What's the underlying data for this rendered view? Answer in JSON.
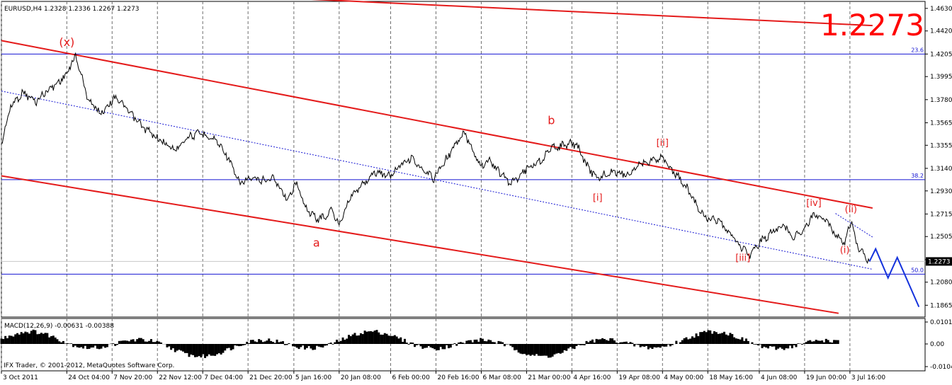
{
  "header": {
    "symbol_line": "EURUSD,H4  1.2328 1.2336 1.2267 1.2273",
    "big_price": "1.2273"
  },
  "indicator": {
    "label": "MACD(12,26,9) -0.00631 -0.00388",
    "y_ticks": [
      "0.0101",
      "0.00",
      "-0.0104"
    ]
  },
  "footer": {
    "copyright": "IFX Trader, © 2001-2012, MetaQuotes Software Corp."
  },
  "colors": {
    "price_line": "#000000",
    "channel": "#e41b1b",
    "fib_line": "#1414d2",
    "wave_label": "#e41b1b",
    "projection": "#1432dc",
    "grid": "#6e6e6e",
    "current_price_box": "#000000"
  },
  "chart_data": {
    "type": "line",
    "title": "EURUSD,H4",
    "y_axis": {
      "range": [
        1.1755,
        1.4695
      ],
      "ticks": [
        "1.4630",
        "1.4420",
        "1.4205",
        "1.3995",
        "1.3780",
        "1.3565",
        "1.3355",
        "1.3140",
        "1.2930",
        "1.2715",
        "1.2505",
        "1.2290",
        "1.2080",
        "1.1865"
      ],
      "current_price": "1.2273"
    },
    "x_axis": {
      "ticks": [
        "3 Oct 2011",
        "24 Oct 04:00",
        "7 Nov 20:00",
        "22 Nov 12:00",
        "7 Dec 04:00",
        "21 Dec 20:00",
        "5 Jan 16:00",
        "20 Jan 08:00",
        "6 Feb 00:00",
        "20 Feb 16:00",
        "6 Mar 08:00",
        "21 Mar 00:00",
        "4 Apr 16:00",
        "19 Apr 08:00",
        "4 May 00:00",
        "18 May 16:00",
        "4 Jun 08:00",
        "19 Jun 00:00",
        "3 Jul 16:00"
      ]
    },
    "price_series": [
      {
        "x": "3 Oct 2011",
        "y": 1.337
      },
      {
        "x": "6 Oct 2011",
        "y": 1.372
      },
      {
        "x": "10 Oct 2011",
        "y": 1.385
      },
      {
        "x": "14 Oct 2011",
        "y": 1.376
      },
      {
        "x": "18 Oct 2011",
        "y": 1.387
      },
      {
        "x": "21 Oct 2011",
        "y": 1.393
      },
      {
        "x": "24 Oct 04:00",
        "y": 1.402
      },
      {
        "x": "27 Oct 2011",
        "y": 1.419
      },
      {
        "x": "31 Oct 2011",
        "y": 1.379
      },
      {
        "x": "4 Nov 2011",
        "y": 1.365
      },
      {
        "x": "9 Nov 2011",
        "y": 1.381
      },
      {
        "x": "14 Nov 2011",
        "y": 1.364
      },
      {
        "x": "18 Nov 2011",
        "y": 1.352
      },
      {
        "x": "23 Nov 2011",
        "y": 1.341
      },
      {
        "x": "28 Nov 2011",
        "y": 1.331
      },
      {
        "x": "2 Dec 2011",
        "y": 1.343
      },
      {
        "x": "7 Dec 2011",
        "y": 1.347
      },
      {
        "x": "12 Dec 2011",
        "y": 1.339
      },
      {
        "x": "15 Dec 2011",
        "y": 1.326
      },
      {
        "x": "19 Dec 2011",
        "y": 1.3
      },
      {
        "x": "22 Dec 2011",
        "y": 1.304
      },
      {
        "x": "27 Dec 2011",
        "y": 1.303
      },
      {
        "x": "30 Dec 2011",
        "y": 1.305
      },
      {
        "x": "4 Jan 2012",
        "y": 1.284
      },
      {
        "x": "6 Jan 2012",
        "y": 1.302
      },
      {
        "x": "10 Jan 2012",
        "y": 1.275
      },
      {
        "x": "13 Jan 2012",
        "y": 1.267
      },
      {
        "x": "16 Jan 2012",
        "y": 1.269
      },
      {
        "x": "18 Jan 2012",
        "y": 1.276
      },
      {
        "x": "20 Jan 2012",
        "y": 1.261
      },
      {
        "x": "24 Jan 2012",
        "y": 1.288
      },
      {
        "x": "27 Jan 2012",
        "y": 1.296
      },
      {
        "x": "1 Feb 2012",
        "y": 1.311
      },
      {
        "x": "6 Feb 2012",
        "y": 1.307
      },
      {
        "x": "9 Feb 2012",
        "y": 1.318
      },
      {
        "x": "13 Feb 2012",
        "y": 1.324
      },
      {
        "x": "16 Feb 2012",
        "y": 1.312
      },
      {
        "x": "20 Feb 2012",
        "y": 1.305
      },
      {
        "x": "23 Feb 2012",
        "y": 1.318
      },
      {
        "x": "27 Feb 2012",
        "y": 1.336
      },
      {
        "x": "1 Mar 2012",
        "y": 1.347
      },
      {
        "x": "6 Mar 2012",
        "y": 1.317
      },
      {
        "x": "9 Mar 2012",
        "y": 1.321
      },
      {
        "x": "13 Mar 2012",
        "y": 1.308
      },
      {
        "x": "16 Mar 2012",
        "y": 1.3
      },
      {
        "x": "21 Mar 2012",
        "y": 1.314
      },
      {
        "x": "26 Mar 2012",
        "y": 1.322
      },
      {
        "x": "29 Mar 2012",
        "y": 1.333
      },
      {
        "x": "3 Apr 2012",
        "y": 1.336
      },
      {
        "x": "6 Apr 2012",
        "y": 1.337
      },
      {
        "x": "10 Apr 2012",
        "y": 1.314
      },
      {
        "x": "13 Apr 2012",
        "y": 1.305
      },
      {
        "x": "18 Apr 2012",
        "y": 1.311
      },
      {
        "x": "23 Apr 2012",
        "y": 1.308
      },
      {
        "x": "27 Apr 2012",
        "y": 1.319
      },
      {
        "x": "2 May 2012",
        "y": 1.323
      },
      {
        "x": "4 May 2012",
        "y": 1.325
      },
      {
        "x": "7 May 2012",
        "y": 1.312
      },
      {
        "x": "11 May 2012",
        "y": 1.3
      },
      {
        "x": "15 May 2012",
        "y": 1.28
      },
      {
        "x": "18 May 2012",
        "y": 1.268
      },
      {
        "x": "22 May 2012",
        "y": 1.265
      },
      {
        "x": "25 May 2012",
        "y": 1.255
      },
      {
        "x": "29 May 2012",
        "y": 1.243
      },
      {
        "x": "1 Jun 2012",
        "y": 1.233
      },
      {
        "x": "5 Jun 2012",
        "y": 1.247
      },
      {
        "x": "8 Jun 2012",
        "y": 1.253
      },
      {
        "x": "12 Jun 2012",
        "y": 1.262
      },
      {
        "x": "15 Jun 2012",
        "y": 1.249
      },
      {
        "x": "19 Jun 2012",
        "y": 1.258
      },
      {
        "x": "22 Jun 2012",
        "y": 1.272
      },
      {
        "x": "26 Jun 2012",
        "y": 1.266
      },
      {
        "x": "29 Jun 2012",
        "y": 1.252
      },
      {
        "x": "2 Jul 2012",
        "y": 1.243
      },
      {
        "x": "4 Jul 2012",
        "y": 1.266
      },
      {
        "x": "6 Jul 2012",
        "y": 1.242
      },
      {
        "x": "9 Jul 2012",
        "y": 1.229
      },
      {
        "x": "10 Jul 2012",
        "y": 1.2273
      }
    ],
    "projection": [
      {
        "x": "10 Jul 2012",
        "y": 1.2273
      },
      {
        "x": "12 Jul 2012",
        "y": 1.239
      },
      {
        "x": "16 Jul 2012",
        "y": 1.212
      },
      {
        "x": "19 Jul 2012",
        "y": 1.231
      },
      {
        "x": "26 Jul 2012",
        "y": 1.185
      }
    ],
    "fib_levels": [
      {
        "label": "23.6",
        "y": 1.4205
      },
      {
        "label": "38.2",
        "y": 1.3035
      },
      {
        "label": "50.0",
        "y": 1.2155
      }
    ],
    "wave_labels": [
      {
        "text": "(x)",
        "x": "24 Oct 04:00",
        "y": 1.428
      },
      {
        "text": "a",
        "x": "13 Jan 2012",
        "y": 1.241
      },
      {
        "text": "b",
        "x": "29 Mar 2012",
        "y": 1.355
      },
      {
        "text": "[ii]",
        "x": "4 May 2012",
        "y": 1.335
      },
      {
        "text": "[i]",
        "x": "13 Apr 2012",
        "y": 1.284
      },
      {
        "text": "[iii]",
        "x": "30 May 2012",
        "y": 1.228
      },
      {
        "text": "[iv]",
        "x": "22 Jun 2012",
        "y": 1.279
      },
      {
        "text": "(ii)",
        "x": "4 Jul 2012",
        "y": 1.273
      },
      {
        "text": "(i)",
        "x": "2 Jul 2012",
        "y": 1.235
      }
    ],
    "trendlines": [
      {
        "name": "channel-upper",
        "style": "solid",
        "color": "channel",
        "from": {
          "x": "3 Oct 2011",
          "y": 1.433
        },
        "to": {
          "x": "11 Jul 2012",
          "y": 1.277
        }
      },
      {
        "name": "channel-lower",
        "style": "solid",
        "color": "channel",
        "from": {
          "x": "3 Oct 2011",
          "y": 1.307
        },
        "to": {
          "x": "30 Jun 2012",
          "y": 1.179
        }
      },
      {
        "name": "top-line",
        "style": "solid",
        "color": "channel",
        "from": {
          "x": "31 Dec 2011",
          "y": 1.473
        },
        "to": {
          "x": "11 Jul 2012",
          "y": 1.447
        }
      },
      {
        "name": "dotted-upper",
        "style": "dotted",
        "color": "fib_line",
        "from": {
          "x": "29 Jun 2012",
          "y": 1.272
        },
        "to": {
          "x": "11 Jul 2012",
          "y": 1.25
        }
      },
      {
        "name": "dotted-mid",
        "style": "dotted",
        "color": "fib_line",
        "from": {
          "x": "3 Oct 2011",
          "y": 1.386
        },
        "to": {
          "x": "11 Jul 2012",
          "y": 1.22
        }
      }
    ]
  }
}
